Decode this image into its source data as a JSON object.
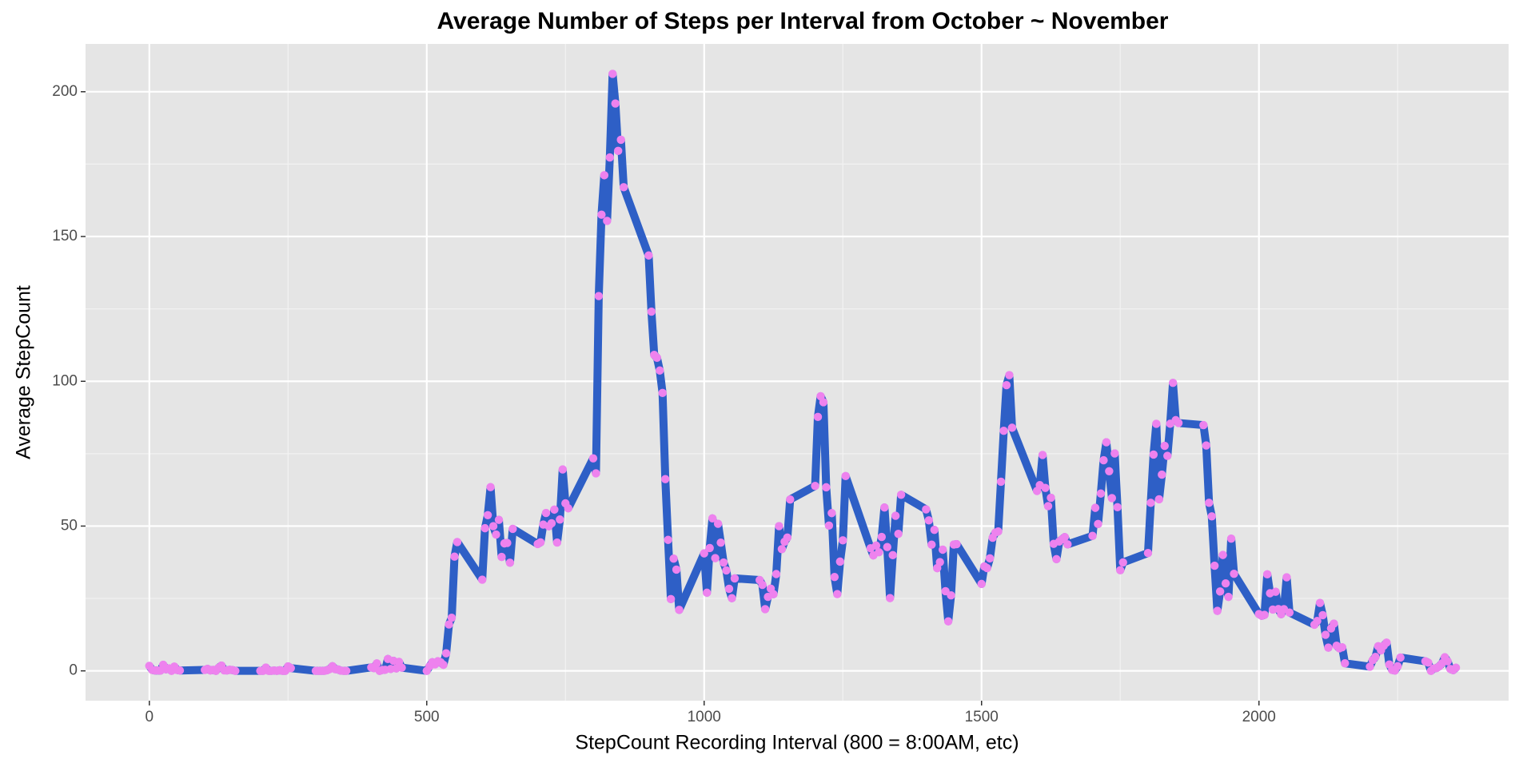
{
  "chart_data": {
    "type": "line",
    "title": "Average Number of Steps per Interval from October ~ November",
    "x_label": "StepCount Recording Interval (800 = 8:00AM, etc)",
    "y_label": "Average StepCount",
    "color": "#2e5fc6",
    "point_color": "#ee82ee",
    "grid": true,
    "xlim": [
      -115,
      2450
    ],
    "ylim": [
      -10.3,
      216.5
    ],
    "xticks": [
      0,
      500,
      1000,
      1500,
      2000
    ],
    "yticks": [
      0,
      50,
      100,
      150,
      200
    ],
    "x": [
      0,
      5,
      10,
      15,
      20,
      25,
      30,
      35,
      40,
      45,
      50,
      55,
      100,
      105,
      110,
      115,
      120,
      125,
      130,
      135,
      140,
      145,
      150,
      155,
      200,
      205,
      210,
      215,
      220,
      225,
      230,
      235,
      240,
      245,
      250,
      255,
      300,
      305,
      310,
      315,
      320,
      325,
      330,
      335,
      340,
      345,
      350,
      355,
      400,
      405,
      410,
      415,
      420,
      425,
      430,
      435,
      440,
      445,
      450,
      455,
      500,
      505,
      510,
      515,
      520,
      525,
      530,
      535,
      540,
      545,
      550,
      555,
      600,
      605,
      610,
      615,
      620,
      625,
      630,
      635,
      640,
      645,
      650,
      655,
      700,
      705,
      710,
      715,
      720,
      725,
      730,
      735,
      740,
      745,
      750,
      755,
      800,
      805,
      810,
      815,
      820,
      825,
      830,
      835,
      840,
      845,
      850,
      855,
      900,
      905,
      910,
      915,
      920,
      925,
      930,
      935,
      940,
      945,
      950,
      955,
      1000,
      1005,
      1010,
      1015,
      1020,
      1025,
      1030,
      1035,
      1040,
      1045,
      1050,
      1055,
      1100,
      1105,
      1110,
      1115,
      1120,
      1125,
      1130,
      1135,
      1140,
      1145,
      1150,
      1155,
      1200,
      1205,
      1210,
      1215,
      1220,
      1225,
      1230,
      1235,
      1240,
      1245,
      1250,
      1255,
      1300,
      1305,
      1310,
      1315,
      1320,
      1325,
      1330,
      1335,
      1340,
      1345,
      1350,
      1355,
      1400,
      1405,
      1410,
      1415,
      1420,
      1425,
      1430,
      1435,
      1440,
      1445,
      1450,
      1455,
      1500,
      1505,
      1510,
      1515,
      1520,
      1525,
      1530,
      1535,
      1540,
      1545,
      1550,
      1555,
      1600,
      1605,
      1610,
      1615,
      1620,
      1625,
      1630,
      1635,
      1640,
      1645,
      1650,
      1655,
      1700,
      1705,
      1710,
      1715,
      1720,
      1725,
      1730,
      1735,
      1740,
      1745,
      1750,
      1755,
      1800,
      1805,
      1810,
      1815,
      1820,
      1825,
      1830,
      1835,
      1840,
      1845,
      1850,
      1855,
      1900,
      1905,
      1910,
      1915,
      1920,
      1925,
      1930,
      1935,
      1940,
      1945,
      1950,
      1955,
      2000,
      2005,
      2010,
      2015,
      2020,
      2025,
      2030,
      2035,
      2040,
      2045,
      2050,
      2055,
      2100,
      2105,
      2110,
      2115,
      2120,
      2125,
      2130,
      2135,
      2140,
      2145,
      2150,
      2155,
      2200,
      2205,
      2210,
      2215,
      2220,
      2225,
      2230,
      2235,
      2240,
      2245,
      2250,
      2255,
      2300,
      2305,
      2310,
      2315,
      2320,
      2325,
      2330,
      2335,
      2340,
      2345,
      2350,
      2355
    ],
    "values": [
      1.72,
      0.34,
      0.13,
      0.15,
      0.08,
      2.09,
      0.53,
      0.87,
      0,
      1.47,
      0.3,
      0.13,
      0.32,
      0.68,
      0.15,
      0.34,
      0,
      1.11,
      1.83,
      0.17,
      0.15,
      0.38,
      0.26,
      0,
      0,
      0,
      1.13,
      0,
      0,
      0.13,
      0,
      0.23,
      0,
      0,
      1.55,
      0.94,
      0,
      0,
      0,
      0,
      0.21,
      0.62,
      1.62,
      0.58,
      0.49,
      0.08,
      0,
      0,
      1.19,
      0.94,
      2.57,
      0,
      0.34,
      0.36,
      4.11,
      0.66,
      3.49,
      0.83,
      3.11,
      1.11,
      0,
      1.57,
      3,
      2.25,
      3.32,
      2.96,
      2.09,
      6.06,
      16.02,
      18.34,
      39.45,
      44.49,
      31.49,
      49.26,
      53.77,
      63.45,
      49.96,
      47.08,
      52.15,
      39.34,
      44.02,
      44.17,
      37.36,
      49.04,
      43.81,
      44.38,
      50.51,
      54.51,
      49.92,
      50.98,
      55.68,
      44.32,
      52.26,
      69.55,
      57.85,
      56.15,
      73.38,
      68.21,
      129.43,
      157.53,
      171.15,
      155.4,
      177.3,
      206.17,
      195.92,
      179.57,
      183.4,
      167.02,
      143.45,
      124.04,
      109.11,
      108.11,
      103.72,
      95.97,
      66.21,
      45.23,
      24.79,
      38.75,
      34.98,
      21.06,
      40.57,
      26.98,
      42.42,
      52.66,
      38.92,
      50.79,
      44.28,
      37.42,
      34.7,
      28.34,
      25.09,
      31.94,
      31.36,
      29.68,
      21.32,
      25.55,
      28.38,
      26.47,
      33.43,
      49.98,
      42.04,
      44.6,
      46.04,
      59.19,
      63.87,
      87.7,
      94.85,
      92.77,
      63.4,
      50.17,
      54.47,
      32.42,
      26.53,
      37.74,
      45.06,
      67.28,
      42.34,
      39.88,
      43.26,
      40.98,
      46.25,
      56.43,
      42.75,
      25.13,
      39.96,
      53.55,
      47.32,
      60.81,
      55.75,
      51.96,
      43.58,
      48.7,
      35.47,
      37.55,
      41.85,
      27.51,
      17.11,
      26.08,
      43.62,
      43.77,
      30.02,
      36.08,
      35.49,
      38.85,
      45.96,
      47.75,
      48.13,
      65.32,
      82.91,
      98.66,
      102.11,
      83.96,
      62.13,
      64.13,
      74.55,
      63.17,
      56.91,
      59.77,
      43.87,
      38.57,
      44.66,
      45.45,
      46.21,
      43.68,
      46.62,
      56.3,
      50.72,
      61.23,
      72.72,
      78.94,
      68.94,
      59.66,
      75.09,
      56.51,
      34.77,
      37.45,
      40.68,
      58.02,
      74.7,
      85.32,
      59.26,
      67.77,
      77.7,
      74.25,
      85.34,
      99.45,
      86.58,
      85.6,
      84.87,
      77.83,
      58.04,
      53.36,
      36.32,
      20.72,
      27.4,
      40.02,
      30.21,
      25.55,
      45.66,
      33.53,
      19.62,
      19.02,
      19.34,
      33.34,
      26.81,
      21.17,
      27.3,
      21.34,
      19.55,
      21.32,
      32.3,
      20.15,
      15.94,
      17.23,
      23.45,
      19.25,
      12.45,
      8.02,
      14.66,
      16.3,
      8.68,
      7.79,
      8.13,
      2.62,
      1.45,
      3.68,
      4.81,
      8.51,
      7.08,
      8.7,
      9.75,
      2.21,
      0.32,
      0.11,
      1.6,
      4.6,
      3.3,
      2.85,
      0,
      0.83,
      0.96,
      1.58,
      2.6,
      4.7,
      3.3,
      0.64,
      0.23,
      1.08
    ]
  }
}
